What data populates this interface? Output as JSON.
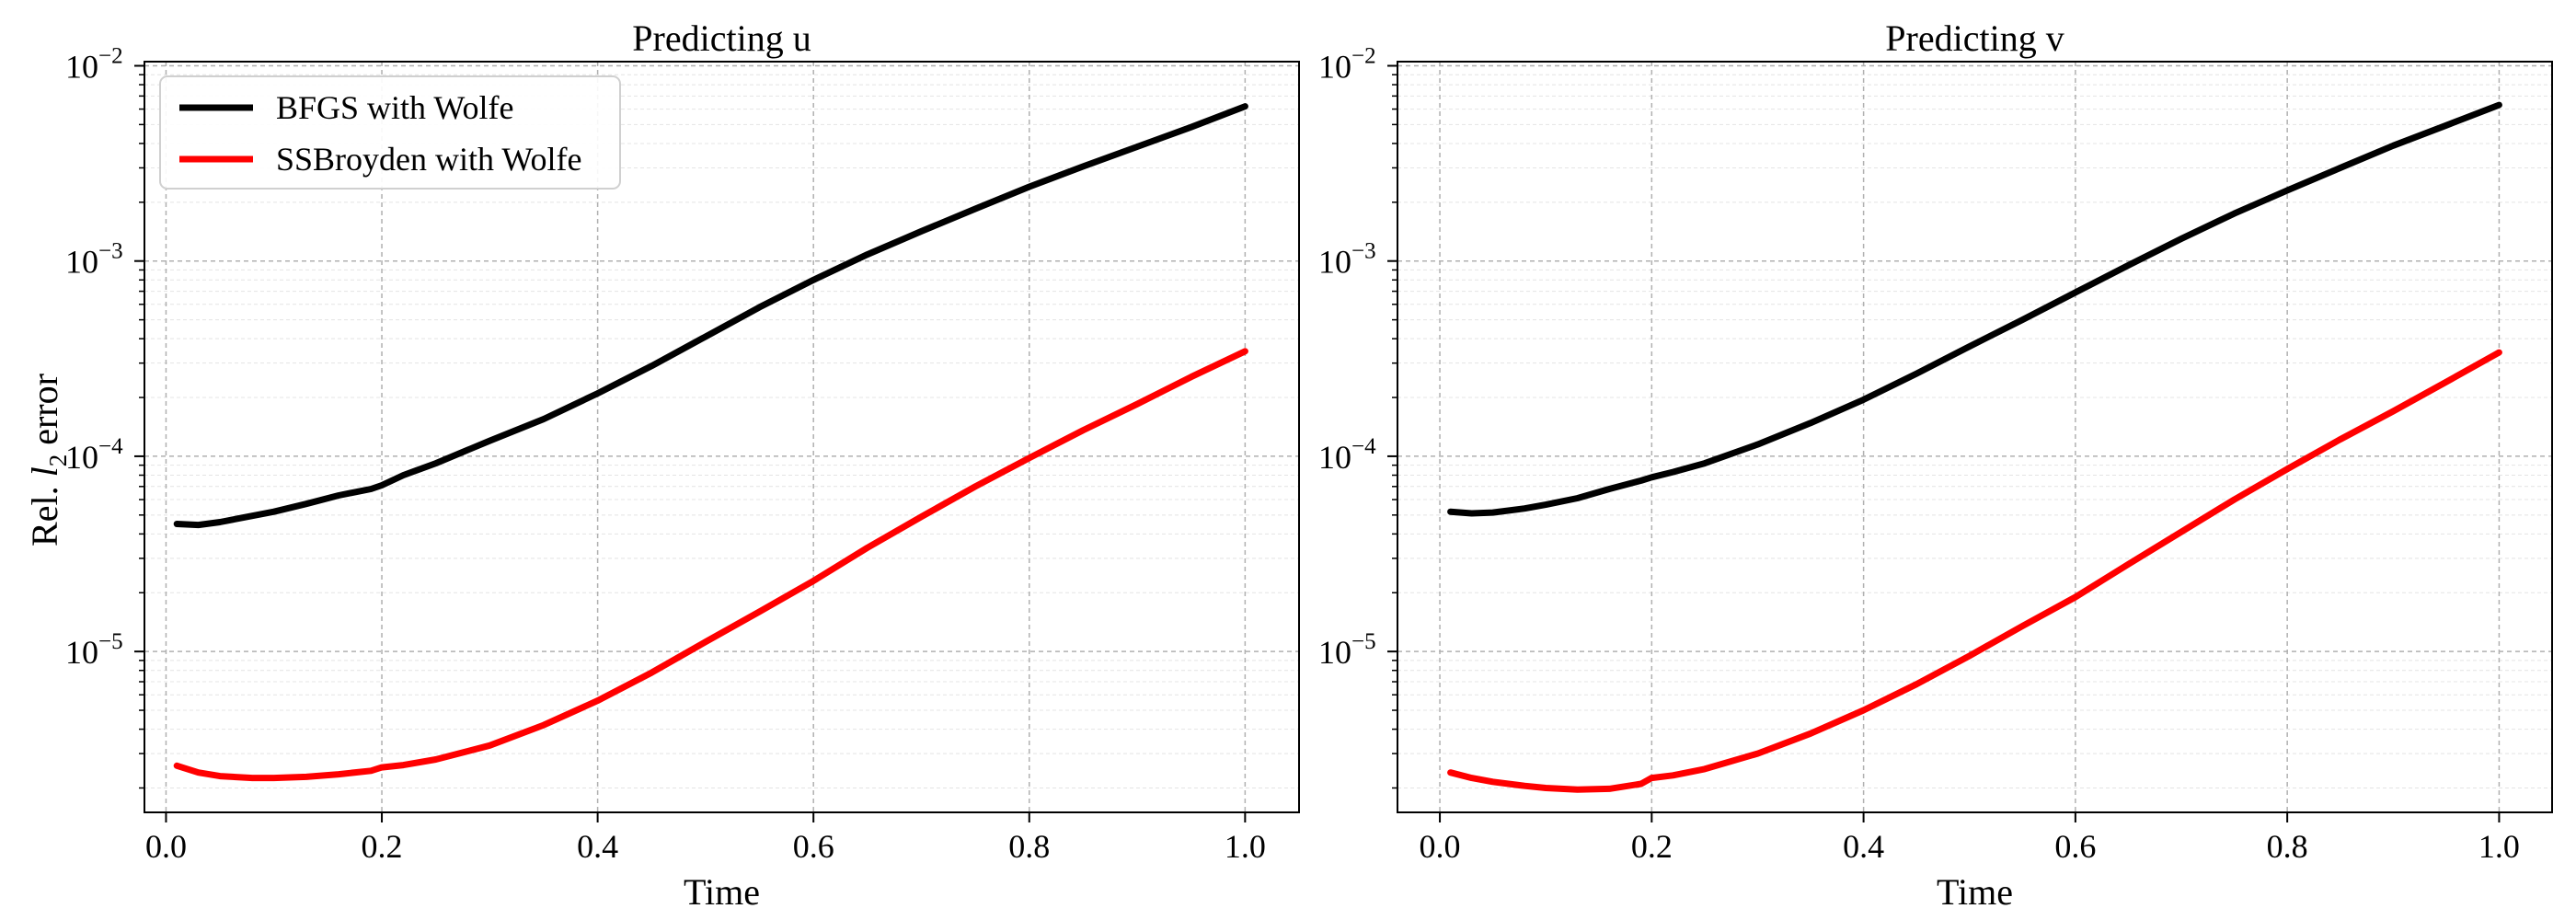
{
  "figure": {
    "ylabel_prefix": "Rel. ",
    "ylabel_var": "l",
    "ylabel_sub": "2",
    "ylabel_suffix": " error"
  },
  "chart_data": [
    {
      "type": "line",
      "title": "Predicting u",
      "xlabel": "Time",
      "ylabel": "Rel. l2 error",
      "yscale": "log",
      "xlim": [
        -0.02,
        1.05
      ],
      "ylim": [
        1.5e-06,
        0.0105
      ],
      "xticks": [
        0.0,
        0.2,
        0.4,
        0.6,
        0.8,
        1.0
      ],
      "xtick_labels": [
        "0.0",
        "0.2",
        "0.4",
        "0.6",
        "0.8",
        "1.0"
      ],
      "yticks": [
        1e-05,
        0.0001,
        0.001,
        0.01
      ],
      "ytick_exps": [
        "−5",
        "−4",
        "−3",
        "−2"
      ],
      "grid": true,
      "legend": "top-left",
      "series": [
        {
          "name": "BFGS with Wolfe",
          "color": "#000000",
          "x": [
            0.01,
            0.03,
            0.05,
            0.08,
            0.1,
            0.13,
            0.16,
            0.19,
            0.2,
            0.22,
            0.25,
            0.3,
            0.35,
            0.4,
            0.45,
            0.5,
            0.55,
            0.6,
            0.65,
            0.7,
            0.75,
            0.8,
            0.85,
            0.9,
            0.95,
            1.0
          ],
          "y": [
            4.5e-05,
            4.45e-05,
            4.6e-05,
            4.95e-05,
            5.2e-05,
            5.7e-05,
            6.3e-05,
            6.8e-05,
            7.1e-05,
            8e-05,
            9.2e-05,
            0.00012,
            0.000155,
            0.00021,
            0.00029,
            0.00041,
            0.00058,
            0.0008,
            0.00108,
            0.00142,
            0.00185,
            0.0024,
            0.00305,
            0.00385,
            0.00485,
            0.0062
          ]
        },
        {
          "name": "SSBroyden with Wolfe",
          "color": "#ff0000",
          "x": [
            0.01,
            0.03,
            0.05,
            0.08,
            0.1,
            0.13,
            0.16,
            0.19,
            0.2,
            0.22,
            0.25,
            0.3,
            0.35,
            0.4,
            0.45,
            0.5,
            0.55,
            0.6,
            0.65,
            0.7,
            0.75,
            0.8,
            0.85,
            0.9,
            0.95,
            1.0
          ],
          "y": [
            2.6e-06,
            2.4e-06,
            2.3e-06,
            2.25e-06,
            2.25e-06,
            2.28e-06,
            2.35e-06,
            2.45e-06,
            2.55e-06,
            2.62e-06,
            2.8e-06,
            3.3e-06,
            4.2e-06,
            5.6e-06,
            7.8e-06,
            1.12e-05,
            1.6e-05,
            2.3e-05,
            3.4e-05,
            4.9e-05,
            7e-05,
            9.8e-05,
            0.000136,
            0.000185,
            0.000255,
            0.000345
          ]
        }
      ]
    },
    {
      "type": "line",
      "title": "Predicting v",
      "xlabel": "Time",
      "ylabel": "",
      "yscale": "log",
      "xlim": [
        -0.04,
        1.05
      ],
      "ylim": [
        1.5e-06,
        0.0105
      ],
      "xticks": [
        0.0,
        0.2,
        0.4,
        0.6,
        0.8,
        1.0
      ],
      "xtick_labels": [
        "0.0",
        "0.2",
        "0.4",
        "0.6",
        "0.8",
        "1.0"
      ],
      "yticks": [
        1e-05,
        0.0001,
        0.001,
        0.01
      ],
      "ytick_exps": [
        "−5",
        "−4",
        "−3",
        "−2"
      ],
      "grid": true,
      "legend": "",
      "series": [
        {
          "name": "BFGS with Wolfe",
          "color": "#000000",
          "x": [
            0.01,
            0.03,
            0.05,
            0.08,
            0.1,
            0.13,
            0.16,
            0.19,
            0.2,
            0.22,
            0.25,
            0.3,
            0.35,
            0.4,
            0.45,
            0.5,
            0.55,
            0.6,
            0.65,
            0.7,
            0.75,
            0.8,
            0.85,
            0.9,
            0.95,
            1.0
          ],
          "y": [
            5.2e-05,
            5.1e-05,
            5.15e-05,
            5.4e-05,
            5.65e-05,
            6.1e-05,
            6.8e-05,
            7.5e-05,
            7.8e-05,
            8.3e-05,
            9.2e-05,
            0.000115,
            0.000148,
            0.000195,
            0.000265,
            0.000365,
            0.0005,
            0.00069,
            0.00095,
            0.0013,
            0.00175,
            0.0023,
            0.003,
            0.0039,
            0.00495,
            0.0063
          ]
        },
        {
          "name": "SSBroyden with Wolfe",
          "color": "#ff0000",
          "x": [
            0.01,
            0.03,
            0.05,
            0.08,
            0.1,
            0.13,
            0.16,
            0.19,
            0.2,
            0.22,
            0.25,
            0.3,
            0.35,
            0.4,
            0.45,
            0.5,
            0.55,
            0.6,
            0.65,
            0.7,
            0.75,
            0.8,
            0.85,
            0.9,
            0.95,
            1.0
          ],
          "y": [
            2.4e-06,
            2.25e-06,
            2.15e-06,
            2.05e-06,
            2e-06,
            1.96e-06,
            1.98e-06,
            2.1e-06,
            2.25e-06,
            2.32e-06,
            2.5e-06,
            3e-06,
            3.8e-06,
            5e-06,
            6.8e-06,
            9.5e-06,
            1.35e-05,
            1.9e-05,
            2.8e-05,
            4.1e-05,
            6e-05,
            8.6e-05,
            0.000122,
            0.00017,
            0.00024,
            0.00034
          ]
        }
      ]
    }
  ]
}
